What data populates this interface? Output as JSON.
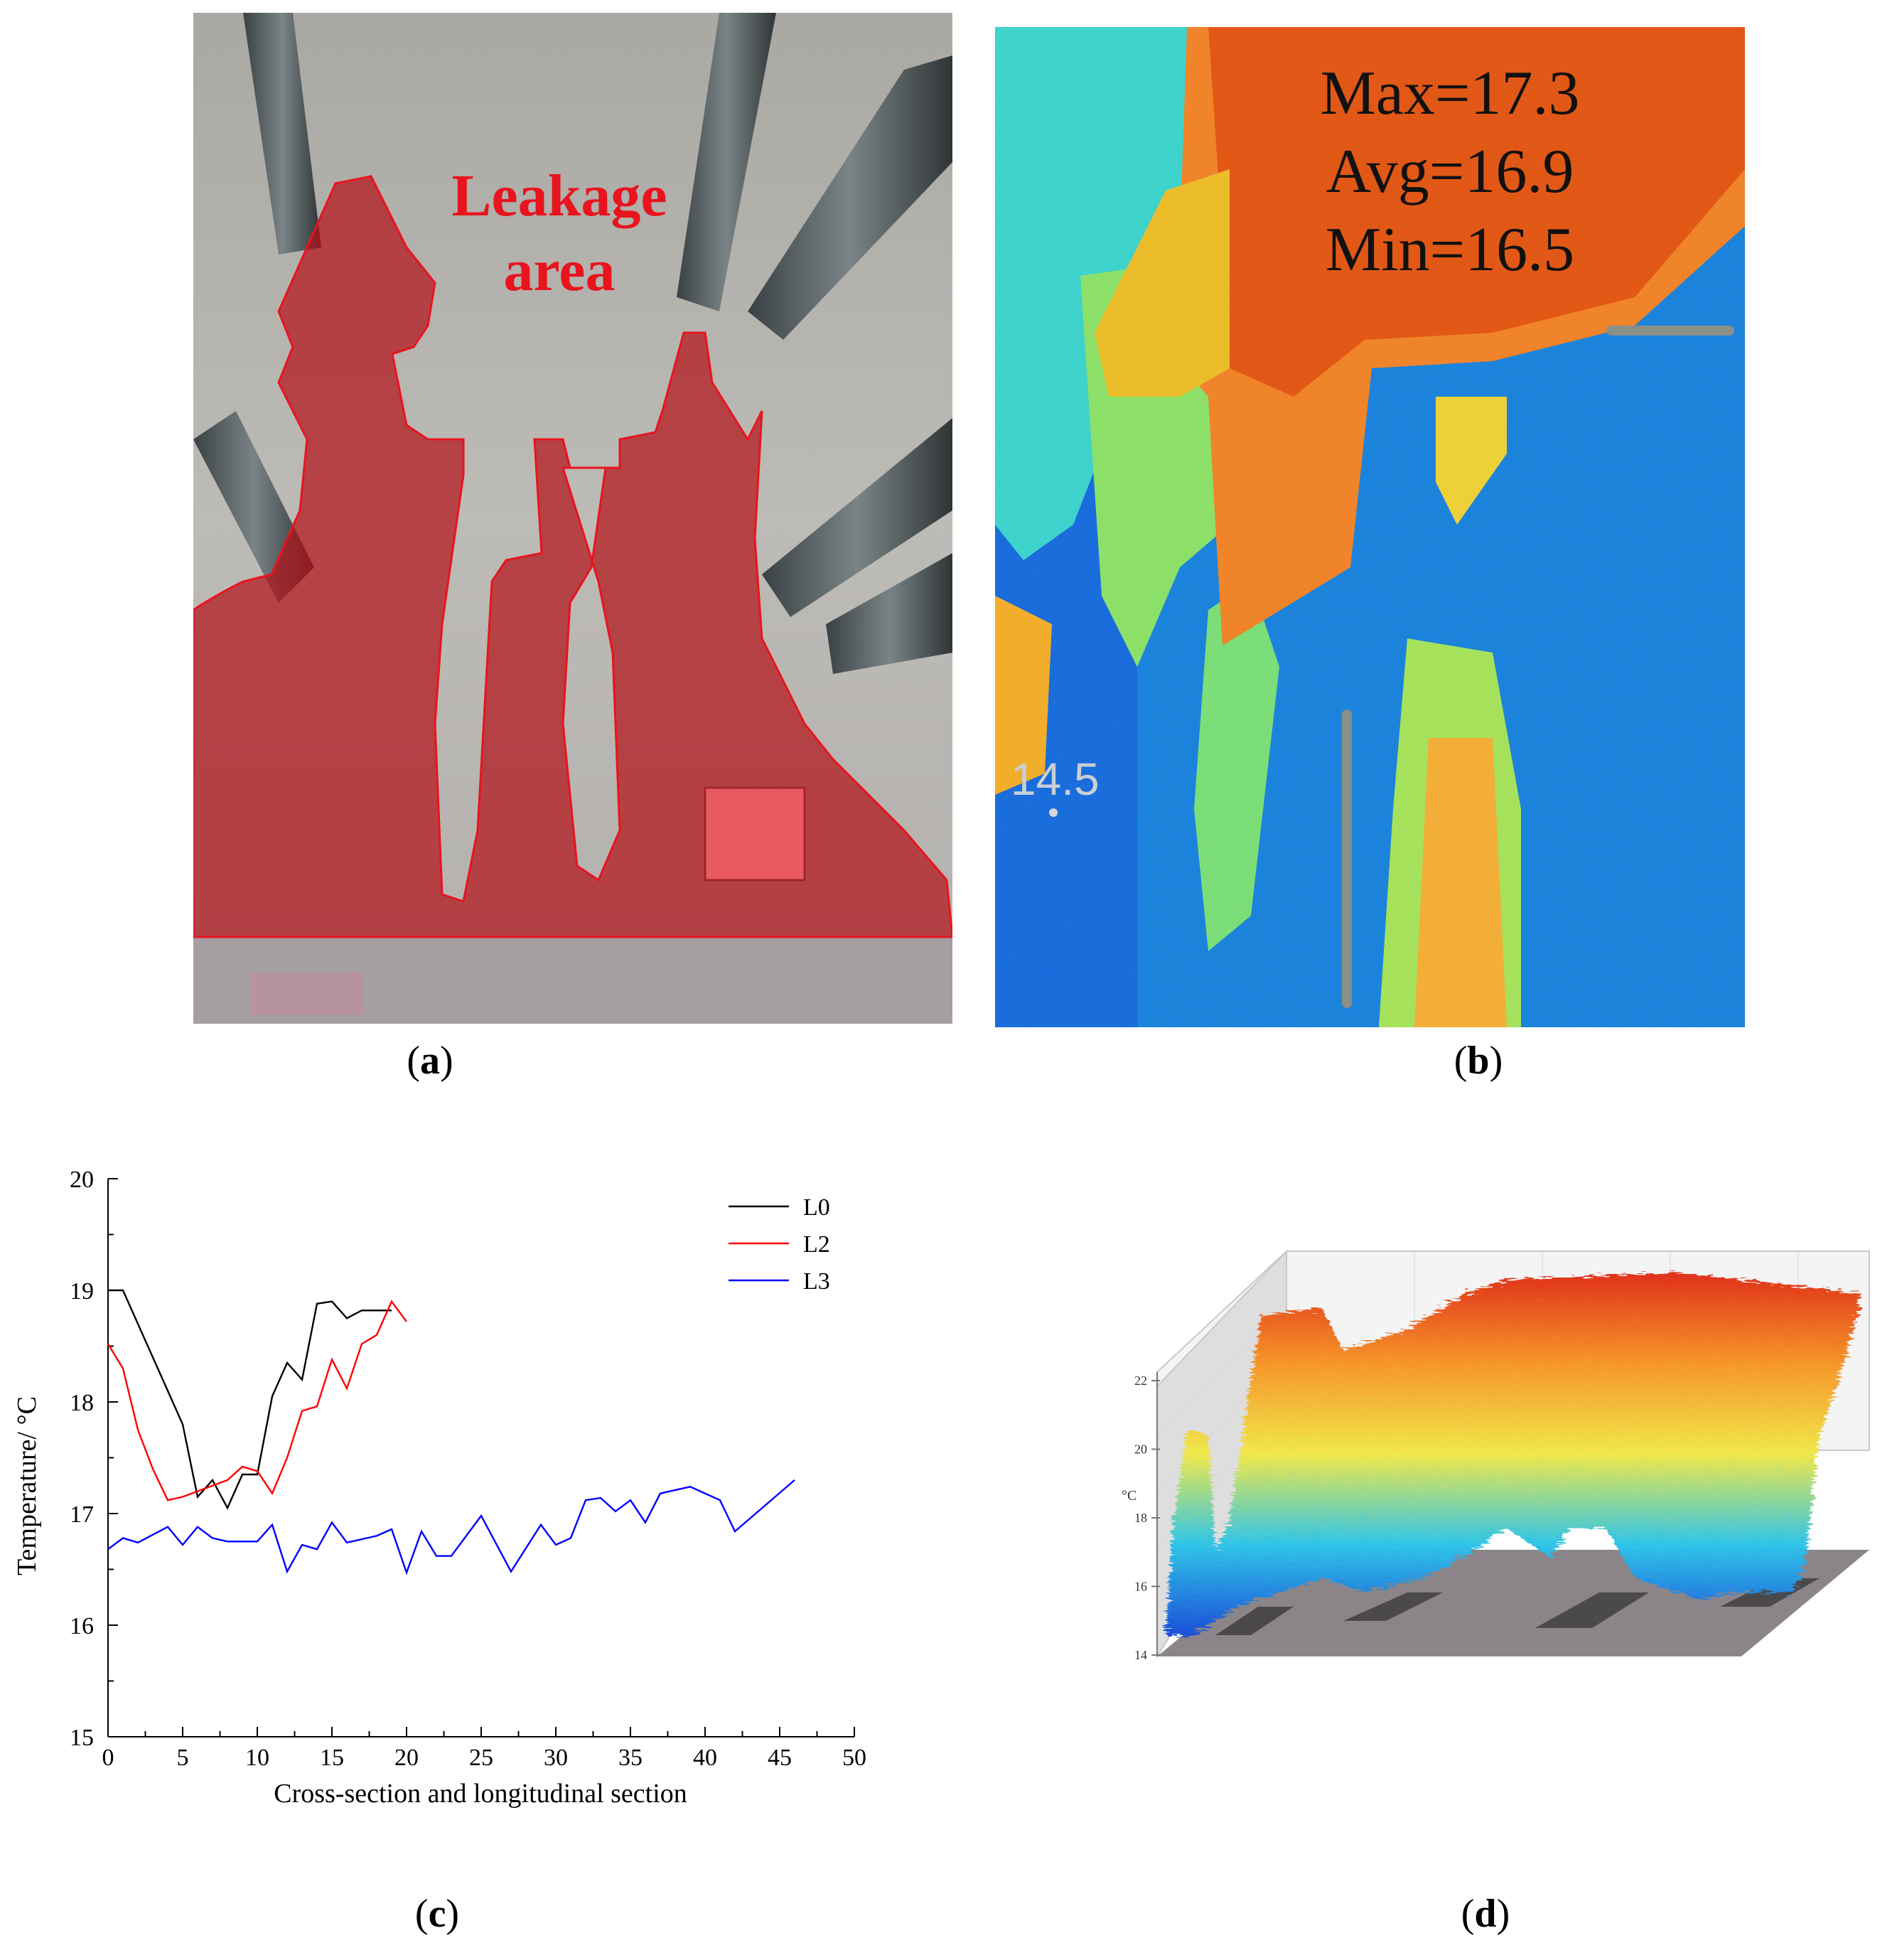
{
  "panels": {
    "a": {
      "caption_open": "(",
      "caption_letter": "a",
      "caption_close": ")",
      "annotation_line1": "Leakage",
      "annotation_line2": "area",
      "annotation_color": "#e8141e",
      "overlay_color": "#b0161e"
    },
    "b": {
      "caption_open": "(",
      "caption_letter": "b",
      "caption_close": ")",
      "stats": [
        "Max=17.3",
        "Avg=16.9",
        "Min=16.5"
      ],
      "point_label": "14.5"
    },
    "c": {
      "caption_open": "(",
      "caption_letter": "c",
      "caption_close": ")"
    },
    "d": {
      "caption_open": "(",
      "caption_letter": "d",
      "caption_close": ")",
      "axis_unit": "°C",
      "z_ticks": [
        "22",
        "20",
        "18",
        "16",
        "14"
      ]
    }
  },
  "chart_data": {
    "type": "line",
    "xlabel": "Cross-section and longitudinal section",
    "ylabel": "Temperature/ °C",
    "xlim": [
      0,
      50
    ],
    "ylim": [
      15,
      20
    ],
    "x_ticks": [
      "0",
      "5",
      "10",
      "15",
      "20",
      "25",
      "30",
      "35",
      "40",
      "45",
      "50"
    ],
    "y_ticks": [
      "15",
      "16",
      "17",
      "18",
      "19",
      "20"
    ],
    "legend_position": "top-right",
    "grid": false,
    "series": [
      {
        "name": "L0",
        "color": "#000000",
        "points": [
          [
            0,
            19.0
          ],
          [
            1,
            19.0
          ],
          [
            2,
            18.7
          ],
          [
            3,
            18.4
          ],
          [
            4,
            18.1
          ],
          [
            5,
            17.8
          ],
          [
            6,
            17.15
          ],
          [
            7,
            17.3
          ],
          [
            8,
            17.05
          ],
          [
            9,
            17.35
          ],
          [
            10,
            17.35
          ],
          [
            11,
            18.05
          ],
          [
            12,
            18.35
          ],
          [
            13,
            18.2
          ],
          [
            14,
            18.88
          ],
          [
            15,
            18.9
          ],
          [
            16,
            18.75
          ],
          [
            17,
            18.82
          ],
          [
            18,
            18.82
          ],
          [
            19,
            18.82
          ]
        ]
      },
      {
        "name": "L2",
        "color": "#ff0000",
        "points": [
          [
            0,
            18.52
          ],
          [
            1,
            18.3
          ],
          [
            2,
            17.75
          ],
          [
            3,
            17.4
          ],
          [
            4,
            17.12
          ],
          [
            5,
            17.15
          ],
          [
            6,
            17.2
          ],
          [
            7,
            17.25
          ],
          [
            8,
            17.3
          ],
          [
            9,
            17.42
          ],
          [
            10,
            17.38
          ],
          [
            11,
            17.18
          ],
          [
            12,
            17.5
          ],
          [
            13,
            17.92
          ],
          [
            14,
            17.96
          ],
          [
            15,
            18.38
          ],
          [
            16,
            18.12
          ],
          [
            17,
            18.52
          ],
          [
            18,
            18.6
          ],
          [
            19,
            18.9
          ],
          [
            20,
            18.72
          ]
        ]
      },
      {
        "name": "L3",
        "color": "#0000ff",
        "points": [
          [
            0,
            16.68
          ],
          [
            1,
            16.78
          ],
          [
            2,
            16.74
          ],
          [
            4,
            16.88
          ],
          [
            5,
            16.72
          ],
          [
            6,
            16.88
          ],
          [
            7,
            16.78
          ],
          [
            8,
            16.75
          ],
          [
            10,
            16.75
          ],
          [
            11,
            16.9
          ],
          [
            12,
            16.48
          ],
          [
            13,
            16.72
          ],
          [
            14,
            16.68
          ],
          [
            15,
            16.92
          ],
          [
            16,
            16.74
          ],
          [
            18,
            16.8
          ],
          [
            19,
            16.86
          ],
          [
            20,
            16.47
          ],
          [
            21,
            16.84
          ],
          [
            22,
            16.62
          ],
          [
            23,
            16.62
          ],
          [
            25,
            16.98
          ],
          [
            27,
            16.48
          ],
          [
            29,
            16.9
          ],
          [
            30,
            16.72
          ],
          [
            31,
            16.78
          ],
          [
            32,
            17.12
          ],
          [
            33,
            17.14
          ],
          [
            34,
            17.02
          ],
          [
            35,
            17.12
          ],
          [
            36,
            16.92
          ],
          [
            37,
            17.18
          ],
          [
            39,
            17.24
          ],
          [
            41,
            17.12
          ],
          [
            42,
            16.84
          ],
          [
            46,
            17.3
          ]
        ]
      }
    ]
  }
}
